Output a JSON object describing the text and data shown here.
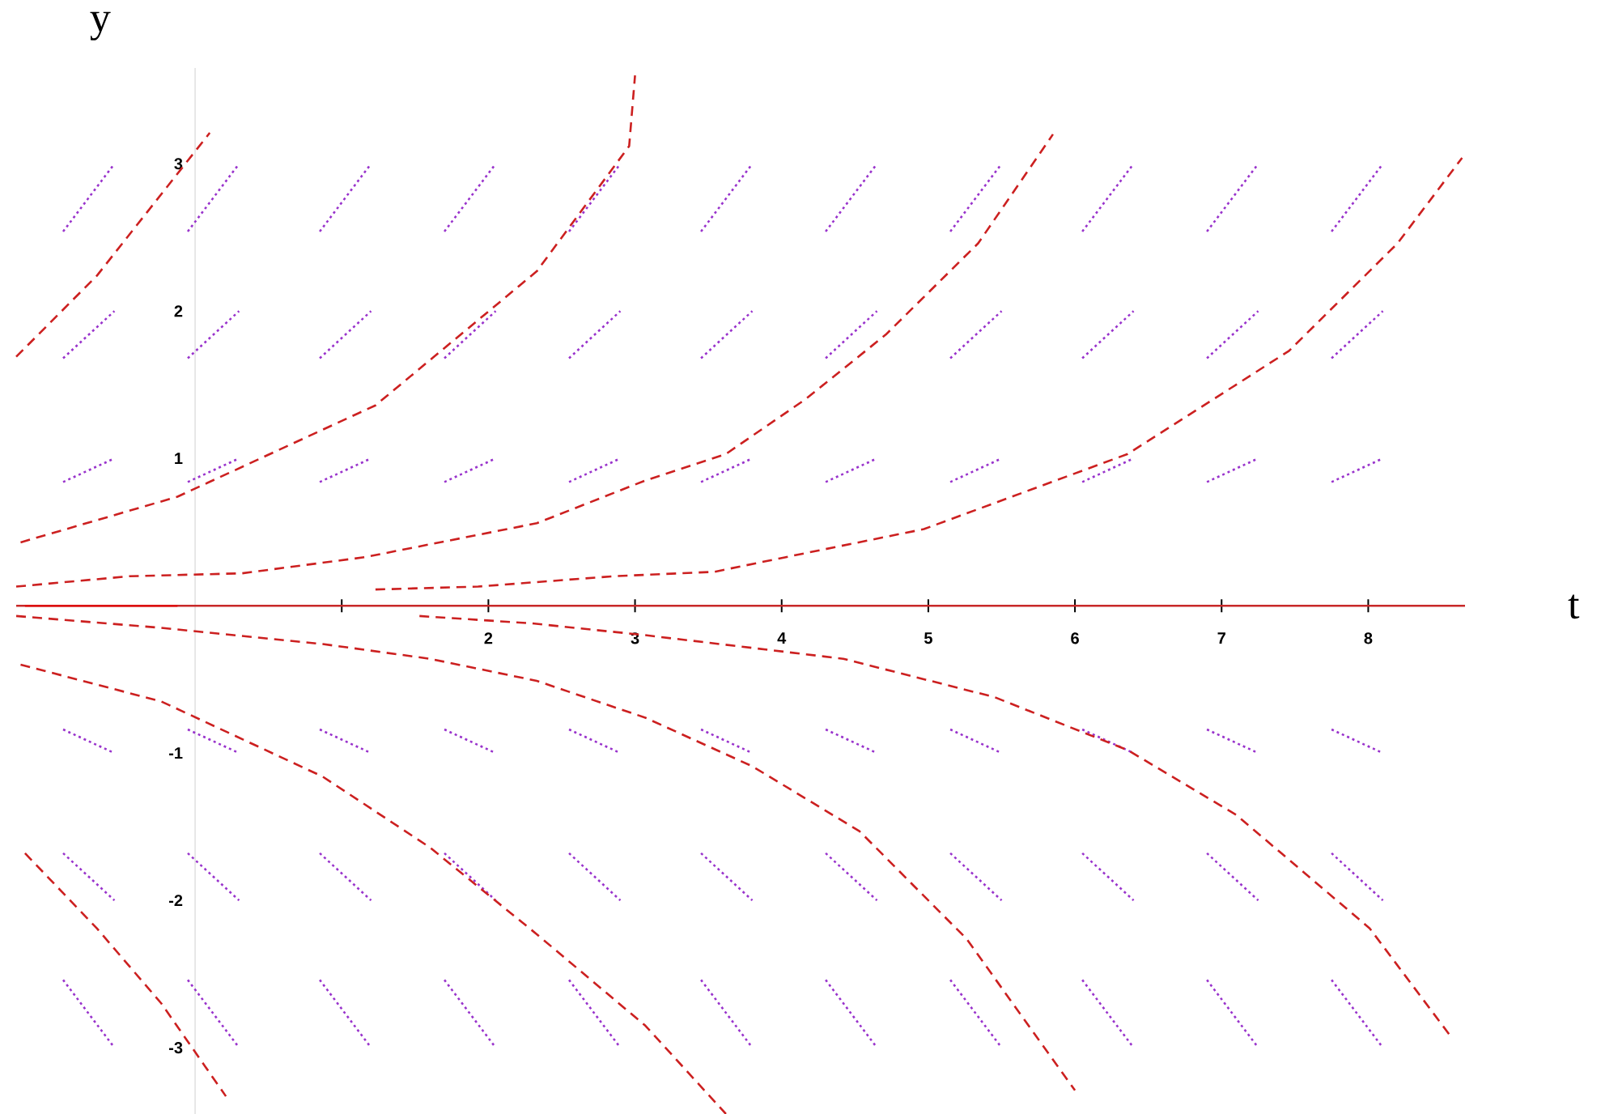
{
  "chart_data": {
    "type": "line",
    "xlabel": "t",
    "ylabel": "y",
    "xlim": [
      -1.22,
      8.66
    ],
    "ylim": [
      -3.45,
      3.65
    ],
    "xticks": [
      {
        "value": 1,
        "label": null
      },
      2,
      3,
      4,
      5,
      6,
      7,
      8
    ],
    "yticks": [
      -3,
      -2,
      -1,
      1,
      2,
      3
    ],
    "ref_lines": [
      {
        "axis": "y",
        "value": 0,
        "color": "#c82828"
      }
    ],
    "series": [
      {
        "color": "#9933cc",
        "line_style": "dotted",
        "x": [
          -0.9,
          -0.55,
          null,
          -0.05,
          0.3,
          null,
          0.85,
          1.2,
          null,
          1.7,
          2.05,
          null,
          2.55,
          2.9,
          null,
          3.45,
          3.8,
          null,
          4.3,
          4.65,
          null,
          5.15,
          5.5,
          null,
          6.05,
          6.4,
          null,
          6.9,
          7.25,
          null,
          7.75,
          8.1,
          null
        ],
        "values": [
          2.54,
          3,
          null,
          2.54,
          3,
          null,
          2.54,
          3,
          null,
          2.54,
          3,
          null,
          2.54,
          3,
          null,
          2.54,
          3,
          null,
          2.54,
          3,
          null,
          2.54,
          3,
          null,
          2.54,
          3,
          null,
          2.54,
          3,
          null,
          2.54,
          3,
          null
        ]
      },
      {
        "color": "#9933cc",
        "line_style": "dotted",
        "x": [
          -0.9,
          -0.55,
          null,
          -0.05,
          0.3,
          null,
          0.85,
          1.2,
          null,
          1.7,
          2.05,
          null,
          2.55,
          2.9,
          null,
          3.45,
          3.8,
          null,
          4.3,
          4.65,
          null,
          5.15,
          5.5,
          null,
          6.05,
          6.4,
          null,
          6.9,
          7.25,
          null,
          7.75,
          8.1,
          null
        ],
        "values": [
          1.68,
          2,
          null,
          1.68,
          2,
          null,
          1.68,
          2,
          null,
          1.68,
          2,
          null,
          1.68,
          2,
          null,
          1.68,
          2,
          null,
          1.68,
          2,
          null,
          1.68,
          2,
          null,
          1.68,
          2,
          null,
          1.68,
          2,
          null,
          1.68,
          2,
          null
        ]
      },
      {
        "color": "#9933cc",
        "line_style": "dotted",
        "x": [
          -0.9,
          -0.55,
          null,
          -0.05,
          0.3,
          null,
          0.85,
          1.2,
          null,
          1.7,
          2.05,
          null,
          2.55,
          2.9,
          null,
          3.45,
          3.8,
          null,
          4.3,
          4.65,
          null,
          5.15,
          5.5,
          null,
          6.05,
          6.4,
          null,
          6.9,
          7.25,
          null,
          7.75,
          8.1,
          null
        ],
        "values": [
          0.84,
          1,
          null,
          0.84,
          1,
          null,
          0.84,
          1,
          null,
          0.84,
          1,
          null,
          0.84,
          1,
          null,
          0.84,
          1,
          null,
          0.84,
          1,
          null,
          0.84,
          1,
          null,
          0.84,
          1,
          null,
          0.84,
          1,
          null,
          0.84,
          1,
          null
        ]
      },
      {
        "color": "#9933cc",
        "line_style": "dotted",
        "x": [
          -0.9,
          -0.55,
          null,
          -0.05,
          0.3,
          null,
          0.85,
          1.2,
          null,
          1.7,
          2.05,
          null,
          2.55,
          2.9,
          null,
          3.45,
          3.8,
          null,
          4.3,
          4.65,
          null,
          5.15,
          5.5,
          null,
          6.05,
          6.4,
          null,
          6.9,
          7.25,
          null,
          7.75,
          8.1,
          null
        ],
        "values": [
          -0.84,
          -1,
          null,
          -0.84,
          -1,
          null,
          -0.84,
          -1,
          null,
          -0.84,
          -1,
          null,
          -0.84,
          -1,
          null,
          -0.84,
          -1,
          null,
          -0.84,
          -1,
          null,
          -0.84,
          -1,
          null,
          -0.84,
          -1,
          null,
          -0.84,
          -1,
          null,
          -0.84,
          -1,
          null
        ]
      },
      {
        "color": "#9933cc",
        "line_style": "dotted",
        "x": [
          -0.9,
          -0.55,
          null,
          -0.05,
          0.3,
          null,
          0.85,
          1.2,
          null,
          1.7,
          2.05,
          null,
          2.55,
          2.9,
          null,
          3.45,
          3.8,
          null,
          4.3,
          4.65,
          null,
          5.15,
          5.5,
          null,
          6.05,
          6.4,
          null,
          6.9,
          7.25,
          null,
          7.75,
          8.1,
          null
        ],
        "values": [
          -1.68,
          -2,
          null,
          -1.68,
          -2,
          null,
          -1.68,
          -2,
          null,
          -1.68,
          -2,
          null,
          -1.68,
          -2,
          null,
          -1.68,
          -2,
          null,
          -1.68,
          -2,
          null,
          -1.68,
          -2,
          null,
          -1.68,
          -2,
          null,
          -1.68,
          -2,
          null,
          -1.68,
          -2,
          null
        ]
      },
      {
        "color": "#9933cc",
        "line_style": "dotted",
        "x": [
          -0.9,
          -0.55,
          null,
          -0.05,
          0.3,
          null,
          0.85,
          1.2,
          null,
          1.7,
          2.05,
          null,
          2.55,
          2.9,
          null,
          3.45,
          3.8,
          null,
          4.3,
          4.65,
          null,
          5.15,
          5.5,
          null,
          6.05,
          6.4,
          null,
          6.9,
          7.25,
          null,
          7.75,
          8.1,
          null
        ],
        "values": [
          -2.54,
          -3,
          null,
          -2.54,
          -3,
          null,
          -2.54,
          -3,
          null,
          -2.54,
          -3,
          null,
          -2.54,
          -3,
          null,
          -2.54,
          -3,
          null,
          -2.54,
          -3,
          null,
          -2.54,
          -3,
          null,
          -2.54,
          -3,
          null,
          -2.54,
          -3,
          null,
          -2.54,
          -3,
          null
        ]
      },
      {
        "color": "#cc2020",
        "line_style": "dashed",
        "x": [
          -1.22,
          -0.67,
          0.1
        ],
        "values": [
          1.69,
          2.24,
          3.21
        ]
      },
      {
        "color": "#cc2020",
        "line_style": "dashed",
        "x": [
          -1.19,
          -0.12,
          1.23,
          2.33,
          2.96,
          3.0
        ],
        "values": [
          0.43,
          0.74,
          1.36,
          2.27,
          3.12,
          3.6
        ]
      },
      {
        "color": "#cc2020",
        "line_style": "dashed",
        "x": [
          -1.22,
          -0.45,
          0.32,
          1.16,
          2.33,
          3.07,
          3.62,
          4.16,
          4.71,
          5.34,
          5.85
        ],
        "values": [
          0.13,
          0.2,
          0.22,
          0.33,
          0.56,
          0.85,
          1.03,
          1.4,
          1.84,
          2.46,
          3.2
        ]
      },
      {
        "color": "#cc2020",
        "line_style": "dashed",
        "x": [
          1.23,
          1.93,
          2.85,
          3.54,
          3.98,
          4.97,
          6.36,
          7.46,
          8.2,
          8.64
        ],
        "values": [
          0.11,
          0.13,
          0.2,
          0.23,
          0.32,
          0.52,
          1.03,
          1.73,
          2.46,
          3.04
        ]
      },
      {
        "color": "#cc2020",
        "line_style": "dashed",
        "x": [
          -1.16,
          -0.67,
          -0.23,
          0.21
        ],
        "values": [
          -1.68,
          -2.19,
          -2.7,
          -3.33
        ]
      },
      {
        "color": "#cc2020",
        "line_style": "dashed",
        "x": [
          -1.19,
          -0.23,
          0.87,
          1.6,
          2.33,
          3.07,
          3.62
        ],
        "values": [
          -0.4,
          -0.65,
          -1.16,
          -1.64,
          -2.23,
          -2.85,
          -3.45
        ]
      },
      {
        "color": "#cc2020",
        "line_style": "dashed",
        "x": [
          -1.22,
          -0.23,
          0.87,
          1.6,
          2.33,
          3.07,
          3.8,
          4.53,
          5.26,
          6.0
        ],
        "values": [
          -0.07,
          -0.15,
          -0.26,
          -0.36,
          -0.51,
          -0.76,
          -1.09,
          -1.53,
          -2.26,
          -3.29
        ]
      },
      {
        "color": "#cc2020",
        "line_style": "dashed",
        "x": [
          1.53,
          2.3,
          3.07,
          4.42,
          5.45,
          6.36,
          7.1,
          8.01,
          8.56
        ],
        "values": [
          -0.07,
          -0.12,
          -0.2,
          -0.36,
          -0.62,
          -0.98,
          -1.42,
          -2.19,
          -2.92
        ]
      },
      {
        "color": "#dd1111",
        "line_style": "solid",
        "x": [
          -1.16,
          -0.12
        ],
        "values": [
          0,
          0
        ]
      }
    ]
  }
}
